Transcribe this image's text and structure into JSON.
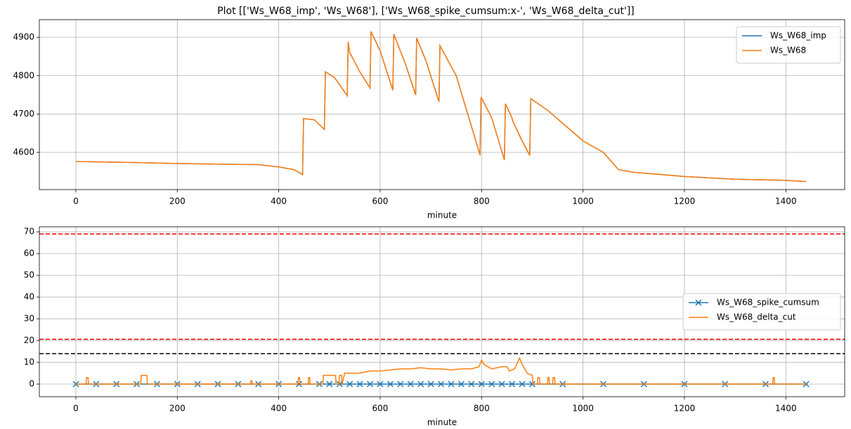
{
  "title": "Plot [['Ws_W68_imp', 'Ws_W68'], ['Ws_W68_spike_cumsum:x-', 'Ws_W68_delta_cut']]",
  "chart_data": [
    {
      "type": "line",
      "xlabel": "minute",
      "grid": true,
      "legend": "upper right",
      "xlim": [
        -72,
        1516
      ],
      "xticks": [
        0,
        200,
        400,
        600,
        800,
        1000,
        1200,
        1400
      ],
      "ylim": [
        4503,
        4946
      ],
      "yticks": [
        4600,
        4700,
        4800,
        4900
      ],
      "x": [
        0,
        100,
        200,
        300,
        360,
        400,
        430,
        447,
        449,
        470,
        490,
        492,
        510,
        535,
        537,
        540,
        560,
        580,
        582,
        600,
        625,
        627,
        650,
        670,
        672,
        690,
        716,
        718,
        750,
        797,
        799,
        820,
        845,
        847,
        860,
        862,
        880,
        895,
        897,
        930,
        1000,
        1040,
        1070,
        1100,
        1200,
        1300,
        1400,
        1440
      ],
      "series": [
        {
          "name": "Ws_W68_imp",
          "color": "#1f77b4",
          "values": [
            4576,
            4574,
            4571,
            4569,
            4568,
            4562,
            4555,
            4542,
            4688,
            4685,
            4660,
            4810,
            4795,
            4748,
            4888,
            4860,
            4810,
            4768,
            4915,
            4865,
            4762,
            4908,
            4830,
            4750,
            4898,
            4840,
            4732,
            4878,
            4800,
            4593,
            4744,
            4690,
            4580,
            4727,
            4690,
            4680,
            4630,
            4592,
            4740,
            4710,
            4630,
            4600,
            4555,
            4548,
            4537,
            4530,
            4527,
            4524
          ]
        },
        {
          "name": "Ws_W68",
          "color": "#ff7f0e",
          "values": [
            4576,
            4574,
            4571,
            4569,
            4568,
            4562,
            4555,
            4542,
            4688,
            4685,
            4660,
            4810,
            4795,
            4748,
            4888,
            4860,
            4810,
            4768,
            4915,
            4865,
            4762,
            4908,
            4830,
            4750,
            4898,
            4840,
            4732,
            4878,
            4800,
            4593,
            4744,
            4690,
            4580,
            4727,
            4690,
            4680,
            4630,
            4592,
            4740,
            4710,
            4630,
            4600,
            4555,
            4548,
            4537,
            4530,
            4527,
            4524
          ]
        }
      ]
    },
    {
      "type": "line",
      "xlabel": "minute",
      "grid": true,
      "legend": "center right",
      "xlim": [
        -72,
        1516
      ],
      "xticks": [
        0,
        200,
        400,
        600,
        800,
        1000,
        1200,
        1400
      ],
      "ylim": [
        -5.8,
        72.3
      ],
      "yticks": [
        0,
        10,
        20,
        30,
        40,
        50,
        60,
        70
      ],
      "hlines": [
        {
          "value": 69,
          "color": "#ff0000"
        },
        {
          "value": 20.6,
          "color": "#ff0000"
        },
        {
          "value": 14,
          "color": "#000000"
        }
      ],
      "series": [
        {
          "name": "Ws_W68_spike_cumsum",
          "color": "#1f77b4",
          "marker": "x",
          "x": [
            0,
            40,
            80,
            120,
            160,
            200,
            240,
            280,
            320,
            360,
            400,
            440,
            480,
            500,
            520,
            540,
            560,
            580,
            600,
            620,
            640,
            660,
            680,
            700,
            720,
            740,
            760,
            780,
            800,
            820,
            840,
            860,
            880,
            900,
            960,
            1040,
            1120,
            1200,
            1280,
            1360,
            1440
          ],
          "values": [
            0,
            0,
            0,
            0,
            0,
            0,
            0,
            0,
            0,
            0,
            0,
            0,
            0,
            0,
            0,
            0,
            0,
            0,
            0,
            0,
            0,
            0,
            0,
            0,
            0,
            0,
            0,
            0,
            0,
            0,
            0,
            0,
            0,
            0,
            0,
            0,
            0,
            0,
            0,
            0,
            0
          ]
        },
        {
          "name": "Ws_W68_delta_cut",
          "color": "#ff7f0e",
          "x": [
            0,
            20,
            21,
            24,
            25,
            128,
            129,
            140,
            141,
            344,
            345,
            347,
            348,
            438,
            439,
            441,
            442,
            458,
            459,
            461,
            462,
            487,
            488,
            512,
            513,
            519,
            520,
            524,
            525,
            530,
            560,
            580,
            600,
            620,
            640,
            660,
            680,
            700,
            720,
            740,
            760,
            780,
            795,
            800,
            805,
            820,
            840,
            850,
            855,
            865,
            875,
            880,
            890,
            900,
            901,
            910,
            911,
            914,
            915,
            930,
            931,
            933,
            934,
            940,
            941,
            944,
            945,
            950,
            1374,
            1375,
            1377,
            1378,
            1440
          ],
          "values": [
            0,
            0,
            3,
            3,
            0,
            0,
            4,
            4,
            0,
            0,
            1.5,
            1.5,
            0,
            0,
            3,
            3,
            0,
            0,
            3,
            3,
            0,
            0,
            4,
            4,
            0,
            0,
            4,
            4,
            0,
            5,
            5,
            6,
            6,
            6.5,
            7,
            7,
            7.5,
            7,
            7,
            6.5,
            7,
            7,
            8,
            11,
            9,
            7,
            8,
            8,
            6,
            7,
            12,
            9,
            5,
            4,
            0,
            0,
            3,
            3,
            0,
            0,
            3,
            3,
            0,
            0,
            3,
            3,
            0,
            0,
            0,
            3,
            3,
            0,
            0
          ]
        }
      ]
    }
  ]
}
